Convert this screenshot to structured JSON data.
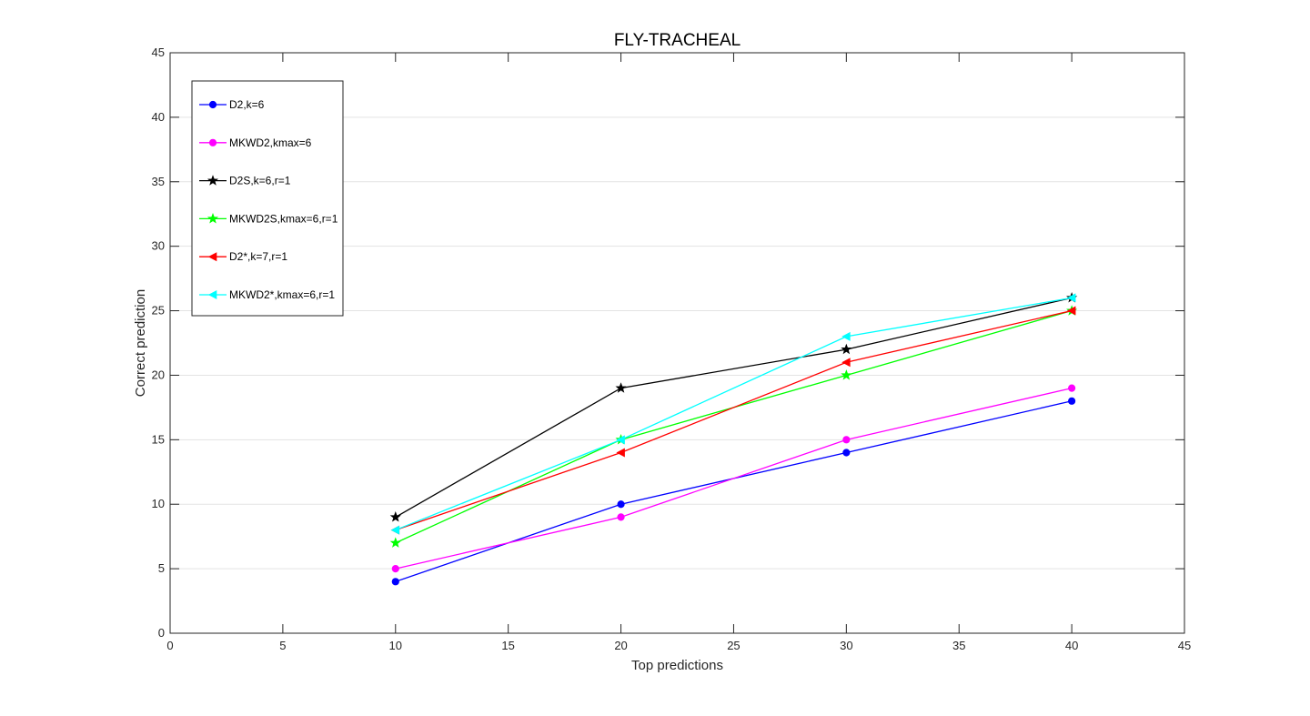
{
  "chart_data": {
    "type": "line",
    "title": "FLY-TRACHEAL",
    "xlabel": "Top predictions",
    "ylabel": "Correct prediction",
    "xlim": [
      0,
      45
    ],
    "ylim": [
      0,
      45
    ],
    "xticks": [
      0,
      5,
      10,
      15,
      20,
      25,
      30,
      35,
      40,
      45
    ],
    "yticks": [
      0,
      5,
      10,
      15,
      20,
      25,
      30,
      35,
      40,
      45
    ],
    "grid": "horizontal",
    "legend_position": "top-left",
    "x": [
      10,
      20,
      30,
      40
    ],
    "series": [
      {
        "name": "D2,k=6",
        "values": [
          4,
          10,
          14,
          18
        ],
        "color": "#0000ff",
        "marker": "circle"
      },
      {
        "name": "MKWD2,kmax=6",
        "values": [
          5,
          9,
          15,
          19
        ],
        "color": "#ff00ff",
        "marker": "circle"
      },
      {
        "name": "D2S,k=6,r=1",
        "values": [
          9,
          19,
          22,
          26
        ],
        "color": "#000000",
        "marker": "star"
      },
      {
        "name": "MKWD2S,kmax=6,r=1",
        "values": [
          7,
          15,
          20,
          25
        ],
        "color": "#00ff00",
        "marker": "star"
      },
      {
        "name": "D2*,k=7,r=1",
        "values": [
          8,
          14,
          21,
          25
        ],
        "color": "#ff0000",
        "marker": "triangle-left"
      },
      {
        "name": "MKWD2*,kmax=6,r=1",
        "values": [
          8,
          15,
          23,
          26
        ],
        "color": "#00ffff",
        "marker": "triangle-left"
      }
    ]
  }
}
